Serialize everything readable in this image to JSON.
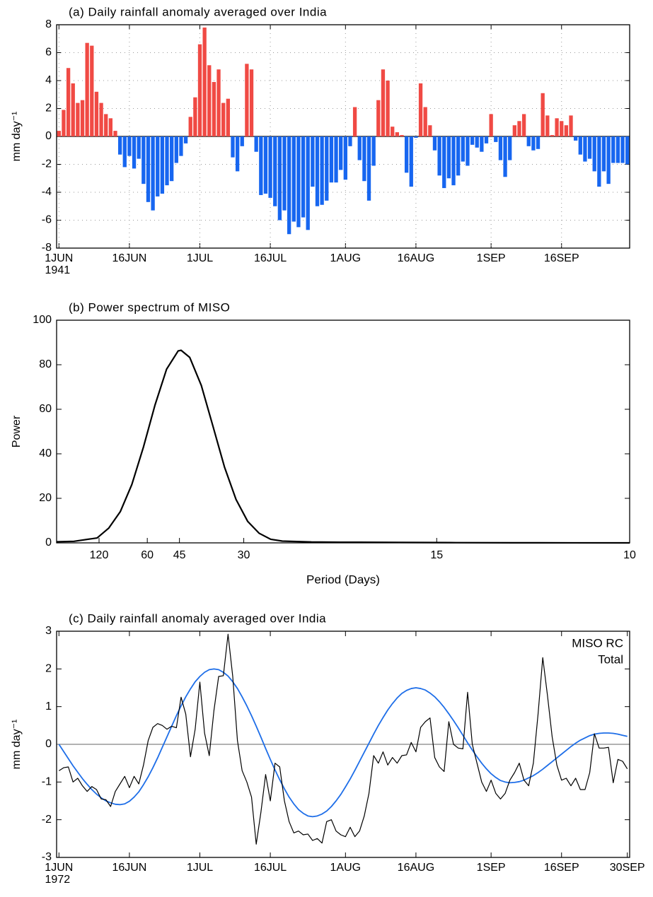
{
  "chart_data": [
    {
      "type": "bar",
      "title": "(a) Daily rainfall anomaly averaged over India",
      "ylabel": "mm day⁻¹",
      "categories": [
        "1JUN",
        null,
        null,
        null,
        null,
        null,
        null,
        null,
        null,
        null,
        null,
        null,
        null,
        null,
        null,
        "16JUN",
        null,
        null,
        null,
        null,
        null,
        null,
        null,
        null,
        null,
        null,
        null,
        null,
        null,
        null,
        "1JUL",
        null,
        null,
        null,
        null,
        null,
        null,
        null,
        null,
        null,
        null,
        null,
        null,
        null,
        null,
        "16JUL",
        null,
        null,
        null,
        null,
        null,
        null,
        null,
        null,
        null,
        null,
        null,
        null,
        null,
        null,
        null,
        "1AUG",
        null,
        null,
        null,
        null,
        null,
        null,
        null,
        null,
        null,
        null,
        null,
        null,
        null,
        null,
        "16AUG",
        null,
        null,
        null,
        null,
        null,
        null,
        null,
        null,
        null,
        null,
        null,
        null,
        null,
        null,
        null,
        "1SEP",
        null,
        null,
        null,
        null,
        null,
        null,
        null,
        null,
        null,
        null,
        null,
        null,
        null,
        null,
        "16SEP",
        null,
        null,
        null,
        null,
        null,
        null,
        null,
        null,
        null,
        null,
        null,
        null,
        null,
        null
      ],
      "year": "1941",
      "values": [
        0.4,
        1.9,
        4.9,
        3.8,
        2.4,
        2.6,
        6.7,
        6.5,
        3.2,
        2.4,
        1.6,
        1.3,
        0.4,
        -1.3,
        -2.2,
        -1.4,
        -2.3,
        -1.6,
        -3.4,
        -4.7,
        -5.3,
        -4.3,
        -4.1,
        -3.5,
        -3.2,
        -1.9,
        -1.4,
        -0.5,
        1.4,
        2.8,
        6.6,
        7.8,
        5.1,
        3.9,
        4.8,
        2.4,
        2.7,
        -1.5,
        -2.5,
        -0.7,
        5.2,
        4.8,
        -1.1,
        -4.2,
        -4.1,
        -4.4,
        -5.0,
        -6.0,
        -5.3,
        -7.0,
        -6.1,
        -6.5,
        -5.8,
        -6.7,
        -3.6,
        -5.0,
        -4.9,
        -4.6,
        -3.3,
        -3.3,
        -2.4,
        -3.1,
        -0.7,
        2.1,
        -1.7,
        -3.2,
        -4.6,
        -2.1,
        2.6,
        4.8,
        4.0,
        0.7,
        0.3,
        0.1,
        -2.6,
        -3.6,
        -0.1,
        3.8,
        2.1,
        0.8,
        -1.0,
        -2.8,
        -3.7,
        -3.0,
        -3.5,
        -2.8,
        -1.8,
        -2.1,
        -0.6,
        -0.8,
        -1.1,
        -0.5,
        1.6,
        -0.4,
        -1.7,
        -2.9,
        -1.7,
        0.8,
        1.1,
        1.6,
        -0.7,
        -1.0,
        -0.9,
        3.1,
        1.5,
        0.1,
        1.3,
        1.1,
        0.8,
        1.5,
        -0.3,
        -1.3,
        -1.8,
        -1.6,
        -2.5,
        -3.6,
        -2.5,
        -3.4,
        -1.9,
        -1.9,
        -1.9,
        -2.0
      ],
      "pos_color": "#f04a44",
      "neg_color": "#1766f0",
      "ylim": [
        -8,
        8
      ],
      "yticks": [
        -8,
        -6,
        -4,
        -2,
        0,
        2,
        4,
        6,
        8
      ],
      "grid": true
    },
    {
      "type": "line",
      "title": "(b) Power spectrum of MISO",
      "ylabel": "Power",
      "xlabel": "Period (Days)",
      "x": [
        0.001,
        0.004,
        0.008,
        0.01,
        0.012,
        0.014,
        0.016,
        0.018,
        0.02,
        0.022,
        0.0225,
        0.024,
        0.026,
        0.028,
        0.03,
        0.032,
        0.034,
        0.036,
        0.038,
        0.04,
        0.045,
        0.05,
        0.06,
        0.07,
        0.08,
        0.09,
        0.1
      ],
      "values": [
        0.5,
        0.7,
        2.2,
        6.6,
        14.0,
        26.2,
        43.0,
        61.9,
        78.0,
        86.2,
        86.5,
        83.3,
        70.7,
        52.5,
        34.1,
        19.5,
        9.7,
        4.3,
        1.6,
        0.8,
        0.4,
        0.3,
        0.2,
        0.1,
        0.05,
        0.02,
        0
      ],
      "color": "#000000",
      "xlim": [
        0.001,
        0.1
      ],
      "xticks": [
        {
          "value": 0.008333,
          "label": "120"
        },
        {
          "value": 0.016667,
          "label": "60"
        },
        {
          "value": 0.022222,
          "label": "45"
        },
        {
          "value": 0.033333,
          "label": "30"
        },
        {
          "value": 0.066667,
          "label": "15"
        },
        {
          "value": 0.1,
          "label": "10"
        }
      ],
      "ylim": [
        0,
        100
      ],
      "yticks": [
        0,
        20,
        40,
        60,
        80,
        100
      ],
      "grid": false
    },
    {
      "type": "line",
      "title": "(c) Daily rainfall anomaly averaged over India",
      "ylabel": "mm day⁻¹",
      "categories": [
        "1JUN",
        null,
        null,
        null,
        null,
        null,
        null,
        null,
        null,
        null,
        null,
        null,
        null,
        null,
        null,
        "16JUN",
        null,
        null,
        null,
        null,
        null,
        null,
        null,
        null,
        null,
        null,
        null,
        null,
        null,
        null,
        "1JUL",
        null,
        null,
        null,
        null,
        null,
        null,
        null,
        null,
        null,
        null,
        null,
        null,
        null,
        null,
        "16JUL",
        null,
        null,
        null,
        null,
        null,
        null,
        null,
        null,
        null,
        null,
        null,
        null,
        null,
        null,
        null,
        "1AUG",
        null,
        null,
        null,
        null,
        null,
        null,
        null,
        null,
        null,
        null,
        null,
        null,
        null,
        null,
        "16AUG",
        null,
        null,
        null,
        null,
        null,
        null,
        null,
        null,
        null,
        null,
        null,
        null,
        null,
        null,
        null,
        "1SEP",
        null,
        null,
        null,
        null,
        null,
        null,
        null,
        null,
        null,
        null,
        null,
        null,
        null,
        null,
        "16SEP",
        null,
        null,
        null,
        null,
        null,
        null,
        null,
        null,
        null,
        null,
        null,
        null,
        null,
        "30SEP"
      ],
      "year": "1972",
      "series": [
        {
          "name": "MISO RC",
          "color": "#1e6ee8",
          "values": [
            0,
            -0.19,
            -0.38,
            -0.57,
            -0.74,
            -0.91,
            -1.06,
            -1.2,
            -1.32,
            -1.42,
            -1.5,
            -1.55,
            -1.59,
            -1.6,
            -1.58,
            -1.51,
            -1.4,
            -1.26,
            -1.07,
            -0.86,
            -0.62,
            -0.36,
            -0.08,
            0.2,
            0.48,
            0.76,
            1.02,
            1.26,
            1.47,
            1.66,
            1.8,
            1.91,
            1.98,
            2.0,
            1.98,
            1.91,
            1.81,
            1.66,
            1.48,
            1.26,
            1.02,
            0.76,
            0.48,
            0.19,
            -0.11,
            -0.4,
            -0.68,
            -0.94,
            -1.18,
            -1.4,
            -1.58,
            -1.73,
            -1.83,
            -1.9,
            -1.92,
            -1.9,
            -1.85,
            -1.77,
            -1.65,
            -1.5,
            -1.33,
            -1.13,
            -0.92,
            -0.69,
            -0.45,
            -0.21,
            0.03,
            0.27,
            0.5,
            0.71,
            0.91,
            1.08,
            1.23,
            1.35,
            1.43,
            1.48,
            1.5,
            1.48,
            1.44,
            1.36,
            1.26,
            1.13,
            0.98,
            0.81,
            0.63,
            0.44,
            0.24,
            0.04,
            -0.15,
            -0.33,
            -0.5,
            -0.65,
            -0.78,
            -0.88,
            -0.96,
            -1.0,
            -1.02,
            -1.01,
            -0.99,
            -0.95,
            -0.89,
            -0.83,
            -0.75,
            -0.66,
            -0.56,
            -0.46,
            -0.36,
            -0.26,
            -0.16,
            -0.06,
            0.03,
            0.11,
            0.17,
            0.23,
            0.27,
            0.29,
            0.3,
            0.3,
            0.29,
            0.27,
            0.24,
            0.21
          ]
        },
        {
          "name": "Total",
          "color": "#000000",
          "values": [
            -0.7,
            -0.62,
            -0.6,
            -1.0,
            -0.9,
            -1.1,
            -1.25,
            -1.12,
            -1.2,
            -1.45,
            -1.47,
            -1.65,
            -1.25,
            -1.05,
            -0.85,
            -1.15,
            -0.85,
            -1.05,
            -0.55,
            0.1,
            0.45,
            0.55,
            0.5,
            0.4,
            0.48,
            0.44,
            1.25,
            0.8,
            -0.33,
            0.4,
            1.65,
            0.3,
            -0.3,
            0.9,
            1.8,
            1.82,
            2.92,
            1.8,
            0.1,
            -0.7,
            -1.0,
            -1.4,
            -2.65,
            -1.8,
            -0.8,
            -1.5,
            -0.5,
            -0.6,
            -1.5,
            -2.05,
            -2.35,
            -2.3,
            -2.4,
            -2.38,
            -2.55,
            -2.5,
            -2.62,
            -2.05,
            -2.0,
            -2.3,
            -2.4,
            -2.45,
            -2.2,
            -2.45,
            -2.3,
            -1.9,
            -1.3,
            -0.3,
            -0.5,
            -0.2,
            -0.55,
            -0.35,
            -0.5,
            -0.3,
            -0.28,
            0.05,
            -0.2,
            0.45,
            0.6,
            0.7,
            -0.35,
            -0.6,
            -0.72,
            0.6,
            0.0,
            -0.1,
            -0.12,
            1.38,
            0.0,
            -0.5,
            -1.0,
            -1.25,
            -0.95,
            -1.3,
            -1.45,
            -1.3,
            -0.95,
            -0.75,
            -0.5,
            -0.95,
            -1.1,
            -0.5,
            0.8,
            2.3,
            1.3,
            0.2,
            -0.55,
            -0.95,
            -0.9,
            -1.1,
            -0.9,
            -1.2,
            -1.2,
            -0.75,
            0.28,
            -0.1,
            -0.1,
            -0.08,
            -1.02,
            -0.4,
            -0.45,
            -0.65
          ]
        }
      ],
      "legend": "upper right",
      "ylim": [
        -3,
        3
      ],
      "yticks": [
        -3,
        -2,
        -1,
        0,
        1,
        2,
        3
      ],
      "grid": false
    }
  ]
}
